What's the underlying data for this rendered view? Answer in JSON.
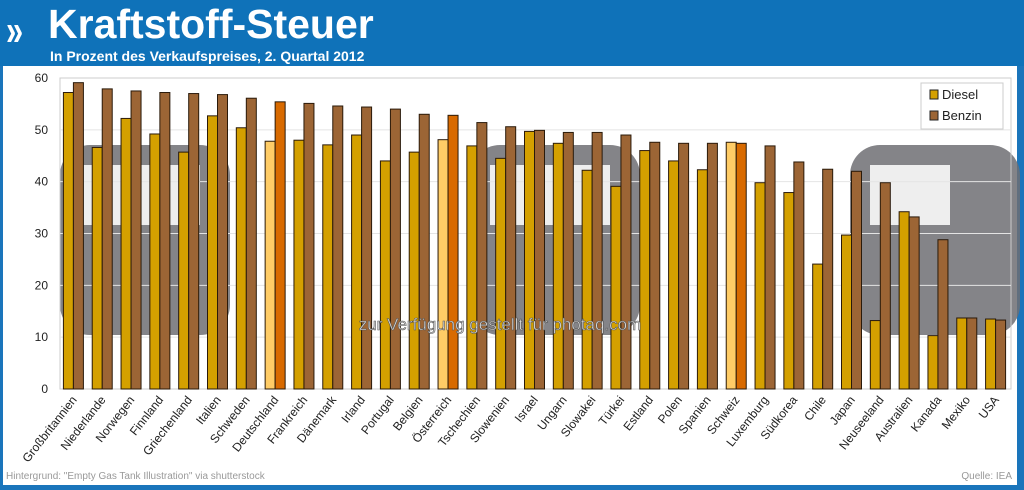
{
  "header": {
    "title": "Kraftstoff-Steuer",
    "subtitle": "In Prozent des Verkaufspreises, 2. Quartal 2012",
    "logo": "»"
  },
  "watermark": "zur Verfügung gestellt für photaq.com",
  "footer": {
    "background_credit": "Hintergrund: \"Empty Gas Tank Illustration\" via shutterstock",
    "source": "Quelle: IEA"
  },
  "colors": {
    "diesel": "#d4a000",
    "benzin": "#9c6535",
    "diesel_highlight": "#ffcc66",
    "benzin_highlight": "#d86a00",
    "header": "#0f72b9"
  },
  "chart_data": {
    "type": "bar",
    "title": "Kraftstoff-Steuer",
    "subtitle": "In Prozent des Verkaufspreises, 2. Quartal 2012",
    "xlabel": "",
    "ylabel": "",
    "ylim": [
      0,
      60
    ],
    "yticks": [
      0,
      10,
      20,
      30,
      40,
      50,
      60
    ],
    "grid": true,
    "legend_position": "top-right",
    "categories": [
      "Großbritannien",
      "Niederlande",
      "Norwegen",
      "Finnland",
      "Griechenland",
      "Italien",
      "Schweden",
      "Deutschland",
      "Frankreich",
      "Dänemark",
      "Irland",
      "Portugal",
      "Belgien",
      "Österreich",
      "Tschechien",
      "Slowenien",
      "Israel",
      "Ungarn",
      "Slowakei",
      "Türkei",
      "Estland",
      "Polen",
      "Spanien",
      "Schweiz",
      "Luxemburg",
      "Südkorea",
      "Chile",
      "Japan",
      "Neuseeland",
      "Australien",
      "Kanada",
      "Mexiko",
      "USA"
    ],
    "highlighted": [
      "Deutschland",
      "Österreich",
      "Schweiz"
    ],
    "series": [
      {
        "name": "Diesel",
        "values": [
          57.2,
          46.6,
          52.2,
          49.2,
          45.7,
          52.7,
          50.4,
          47.8,
          48.0,
          47.1,
          49.0,
          44.0,
          45.7,
          48.1,
          46.9,
          44.5,
          49.7,
          47.4,
          42.2,
          39.1,
          46.0,
          44.0,
          42.3,
          47.6,
          39.8,
          37.9,
          24.1,
          29.7,
          13.2,
          34.2,
          10.3,
          13.7,
          13.5
        ]
      },
      {
        "name": "Benzin",
        "values": [
          59.1,
          57.9,
          57.5,
          57.2,
          57.0,
          56.8,
          56.1,
          55.4,
          55.1,
          54.6,
          54.4,
          54.0,
          53.0,
          52.8,
          51.4,
          50.6,
          49.9,
          49.5,
          49.5,
          49.0,
          47.6,
          47.4,
          47.4,
          47.4,
          46.9,
          43.8,
          42.4,
          42.0,
          39.8,
          33.2,
          28.8,
          13.7,
          13.3
        ]
      }
    ]
  }
}
